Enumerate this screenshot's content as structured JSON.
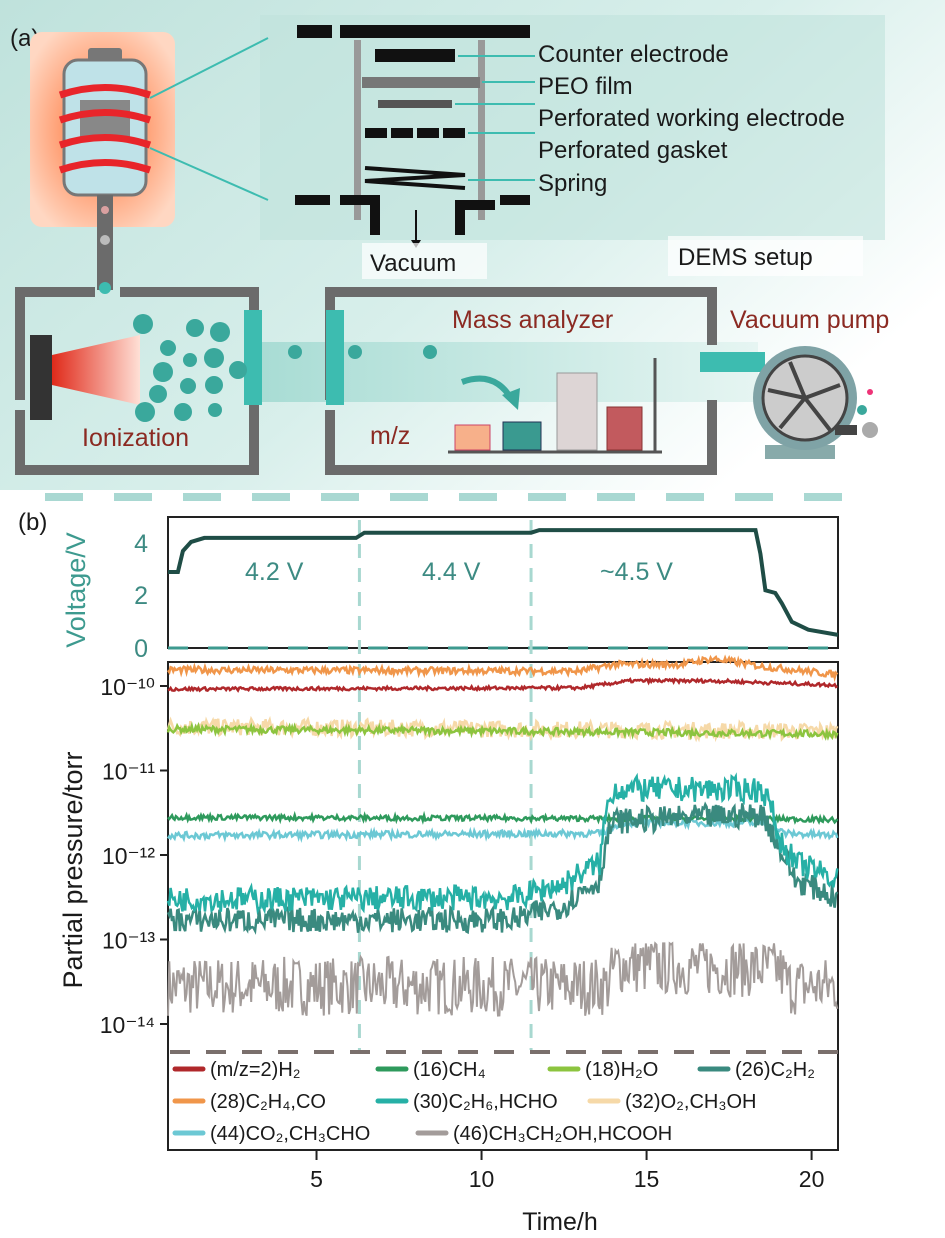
{
  "panel_a": {
    "label": "(a)",
    "stack_labels": [
      "Counter electrode",
      "PEO film",
      "Perforated working electrode",
      "Perforated gasket",
      "Spring"
    ],
    "vacuum": "Vacuum",
    "setup_title": "DEMS setup",
    "mass_analyzer": "Mass analyzer",
    "vacuum_pump": "Vacuum pump",
    "ionization": "Ionization",
    "mz": "m/z",
    "colors": {
      "teal": "#3dbcb0",
      "red_text": "#8b2a22",
      "background": "#d4ece8"
    }
  },
  "chart_data": [
    {
      "type": "line",
      "panel": "(b) top",
      "ylabel": "Voltage/V",
      "ylim": [
        0,
        5.8
      ],
      "xlim": [
        0.5,
        20.8
      ],
      "yticks": [
        "0",
        "2",
        "4"
      ],
      "annotations": [
        "4.2 V",
        "4.4 V",
        "~4.5 V"
      ],
      "dividers_x": [
        6.3,
        11.5
      ],
      "series": [
        {
          "color": "#1f4d46",
          "points": [
            [
              0.5,
              2.9
            ],
            [
              0.8,
              2.9
            ],
            [
              0.95,
              3.7
            ],
            [
              1.2,
              4.05
            ],
            [
              1.6,
              4.2
            ],
            [
              6.2,
              4.2
            ],
            [
              6.45,
              4.4
            ],
            [
              11.5,
              4.4
            ],
            [
              11.75,
              4.5
            ],
            [
              18.3,
              4.5
            ],
            [
              18.45,
              3.6
            ],
            [
              18.6,
              2.2
            ],
            [
              18.9,
              2.1
            ],
            [
              19.1,
              1.7
            ],
            [
              19.4,
              1.0
            ],
            [
              19.9,
              0.7
            ],
            [
              20.8,
              0.5
            ]
          ]
        }
      ]
    },
    {
      "type": "line",
      "panel": "(b) bottom",
      "ylabel": "Partial pressure/torr",
      "xlabel": "Time/h",
      "yscale": "log",
      "ylim": [
        8e-15,
        3.5e-10
      ],
      "xlim": [
        0.5,
        20.8
      ],
      "xticks": [
        "5",
        "10",
        "15",
        "20"
      ],
      "yticks": [
        "10⁻¹⁴",
        "10⁻¹³",
        "10⁻¹²",
        "10⁻¹¹",
        "10⁻¹⁰"
      ],
      "legend_position": "bottom",
      "series": [
        {
          "name": "(m/z=2)H₂",
          "color": "#b0282b",
          "points": [
            [
              0.5,
              9.2e-11
            ],
            [
              13,
              9.5e-11
            ],
            [
              14.5,
              1.15e-10
            ],
            [
              17,
              1.15e-10
            ],
            [
              20.8,
              1.02e-10
            ]
          ]
        },
        {
          "name": "(16)CH₄",
          "color": "#2e9a5c",
          "points": [
            [
              0.5,
              2.8e-12
            ],
            [
              13.7,
              2.7e-12
            ],
            [
              18.5,
              2.7e-12
            ],
            [
              20.8,
              2.6e-12
            ]
          ]
        },
        {
          "name": "(18)H₂O",
          "color": "#8cc43f",
          "points": [
            [
              0.5,
              3.1e-11
            ],
            [
              12,
              2.9e-11
            ],
            [
              20.8,
              2.7e-11
            ]
          ]
        },
        {
          "name": "(26)C₂H₂",
          "color": "#3a8a7f",
          "points": [
            [
              0.5,
              1.7e-13
            ],
            [
              11,
              1.7e-13
            ],
            [
              12.5,
              2.5e-13
            ],
            [
              13.6,
              5e-13
            ],
            [
              14,
              2.5e-12
            ],
            [
              18.5,
              3e-12
            ],
            [
              19,
              1.2e-12
            ],
            [
              19.5,
              5e-13
            ],
            [
              20.8,
              3e-13
            ]
          ]
        },
        {
          "name": "(28)C₂H₄,CO",
          "color": "#f0964a",
          "points": [
            [
              0.5,
              1.55e-10
            ],
            [
              13,
              1.5e-10
            ],
            [
              14,
              1.8e-10
            ],
            [
              16,
              1.8e-10
            ],
            [
              17,
              2.1e-10
            ],
            [
              18.5,
              1.7e-10
            ],
            [
              20.8,
              1.35e-10
            ]
          ]
        },
        {
          "name": "(30)C₂H₆,HCHO",
          "color": "#26b0a6",
          "points": [
            [
              0.5,
              3e-13
            ],
            [
              11,
              3.1e-13
            ],
            [
              12.5,
              4.5e-13
            ],
            [
              13.6,
              8e-13
            ],
            [
              14,
              6e-12
            ],
            [
              18.5,
              6e-12
            ],
            [
              19,
              1.5e-12
            ],
            [
              19.5,
              8e-13
            ],
            [
              20.8,
              5e-13
            ]
          ]
        },
        {
          "name": "(32)O₂,CH₃OH",
          "color": "#f6d9a8",
          "points": [
            [
              0.5,
              3.3e-11
            ],
            [
              20.8,
              2.9e-11
            ]
          ]
        },
        {
          "name": "(44)CO₂,CH₃CHO",
          "color": "#6cc8d4",
          "points": [
            [
              0.5,
              1.7e-12
            ],
            [
              13.7,
              1.8e-12
            ],
            [
              14.2,
              2.4e-12
            ],
            [
              18.5,
              2.4e-12
            ],
            [
              19.2,
              1.8e-12
            ],
            [
              20.8,
              1.7e-12
            ]
          ]
        },
        {
          "name": "(46)CH₃CH₂OH,HCOOH",
          "color": "#a39c9a",
          "points": [
            [
              0.5,
              2.8e-14
            ],
            [
              13.8,
              2.8e-14
            ],
            [
              14.1,
              5e-14
            ],
            [
              19,
              4.5e-14
            ],
            [
              19.3,
              2.8e-14
            ],
            [
              20.8,
              2.8e-14
            ]
          ]
        }
      ]
    }
  ],
  "panel_b": {
    "label": "(b)"
  }
}
